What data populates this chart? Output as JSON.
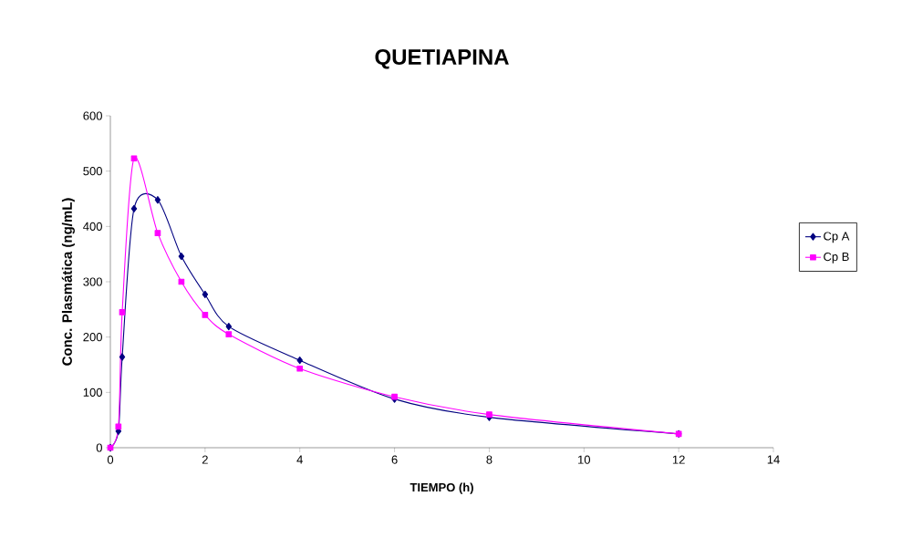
{
  "chart_data": {
    "type": "line",
    "title": "QUETIAPINA",
    "xlabel": "TIEMPO (h)",
    "ylabel": "Conc. Plasmática (ng/mL)",
    "x": [
      0,
      0.17,
      0.25,
      0.5,
      1,
      1.5,
      2,
      2.5,
      4,
      6,
      8,
      12
    ],
    "series": [
      {
        "name": "Cp A",
        "color": "#000080",
        "marker": "diamond",
        "values": [
          0,
          30,
          164,
          432,
          448,
          346,
          277,
          219,
          158,
          88,
          55,
          25
        ]
      },
      {
        "name": "Cp B",
        "color": "#ff00ff",
        "marker": "square",
        "values": [
          0,
          38,
          245,
          523,
          388,
          300,
          240,
          205,
          143,
          92,
          60,
          25
        ]
      }
    ],
    "xlim": [
      0,
      14
    ],
    "xticks": [
      0,
      2,
      4,
      6,
      8,
      10,
      12,
      14
    ],
    "ylim": [
      0,
      600
    ],
    "yticks": [
      0,
      100,
      200,
      300,
      400,
      500,
      600
    ],
    "grid": false,
    "legend": "right",
    "line_style": "solid"
  }
}
